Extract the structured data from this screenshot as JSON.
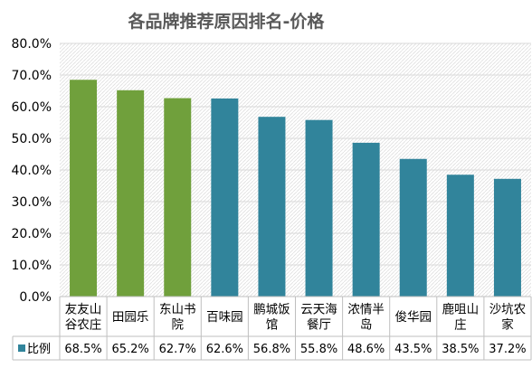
{
  "chart_data": {
    "type": "bar",
    "title": "各品牌推荐原因排名-价格",
    "categories": [
      [
        "友友山",
        "谷农庄"
      ],
      [
        "田园乐"
      ],
      [
        "东山书",
        "院"
      ],
      [
        "百味园"
      ],
      [
        "鹏城饭",
        "馆"
      ],
      [
        "云天海",
        "餐厅"
      ],
      [
        "浓情半",
        "岛"
      ],
      [
        "俊华园"
      ],
      [
        "鹿咀山",
        "庄"
      ],
      [
        "沙坑农",
        "家"
      ]
    ],
    "series": [
      {
        "name": "比例",
        "values": [
          68.5,
          65.2,
          62.7,
          62.6,
          56.8,
          55.8,
          48.6,
          43.5,
          38.5,
          37.2
        ],
        "value_labels": [
          "68.5%",
          "65.2%",
          "62.7%",
          "62.6%",
          "56.8%",
          "55.8%",
          "48.6%",
          "43.5%",
          "38.5%",
          "37.2%"
        ]
      }
    ],
    "y_ticks": [
      "0.0%",
      "10.0%",
      "20.0%",
      "30.0%",
      "40.0%",
      "50.0%",
      "60.0%",
      "70.0%",
      "80.0%"
    ],
    "ylim": [
      0,
      80
    ],
    "xlabel": "",
    "ylabel": "",
    "grid": true,
    "legend": "data-table",
    "colors": {
      "highlight": "#70A03C",
      "normal": "#31849B",
      "legend_key": "#31849B",
      "grid": "#D9D9D9",
      "plot_bg": "#F2F2F2"
    },
    "highlight_indices": [
      0,
      1,
      2
    ]
  }
}
